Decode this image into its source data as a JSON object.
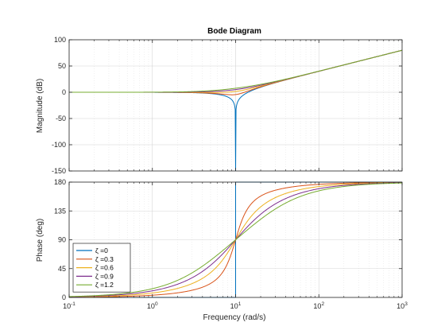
{
  "chart_data": {
    "type": "line",
    "title": "Bode Diagram",
    "xlabel": "Frequency  (rad/s)",
    "x_scale": "log",
    "xlim": [
      0.1,
      1000
    ],
    "x_ticks": [
      {
        "base": "10",
        "exp": "-1"
      },
      {
        "base": "10",
        "exp": "0"
      },
      {
        "base": "10",
        "exp": "1"
      },
      {
        "base": "10",
        "exp": "2"
      },
      {
        "base": "10",
        "exp": "3"
      }
    ],
    "grid": true,
    "legend_position": "lower-left",
    "natural_frequency": 10,
    "panels": [
      {
        "id": "magnitude",
        "ylabel": "Magnitude (dB)",
        "ylim": [
          -150,
          100
        ],
        "y_ticks": [
          "100",
          "50",
          "0",
          "-50",
          "-100",
          "-150"
        ]
      },
      {
        "id": "phase",
        "ylabel": "Phase (deg)",
        "ylim": [
          0,
          180
        ],
        "y_ticks": [
          "180",
          "135",
          "90",
          "45",
          "0"
        ]
      }
    ],
    "series": [
      {
        "name": "ζ =0",
        "zeta": 0,
        "color": "#0072BD"
      },
      {
        "name": "ζ =0.3",
        "zeta": 0.3,
        "color": "#D95319"
      },
      {
        "name": "ζ =0.6",
        "zeta": 0.6,
        "color": "#EDB120"
      },
      {
        "name": "ζ =0.9",
        "zeta": 0.9,
        "color": "#7E2F8E"
      },
      {
        "name": "ζ =1.2",
        "zeta": 1.2,
        "color": "#77AC30"
      }
    ]
  }
}
